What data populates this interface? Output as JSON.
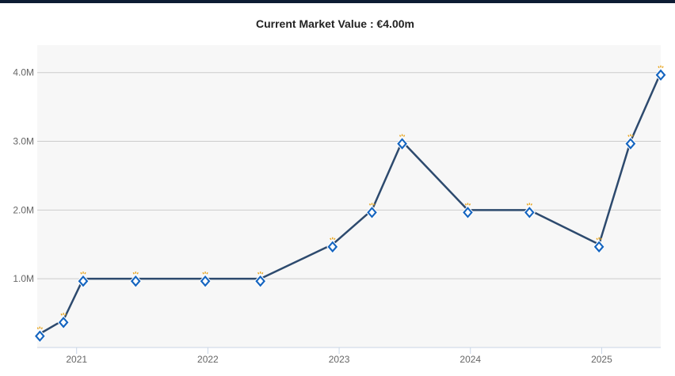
{
  "title": "Current Market Value : €4.00m",
  "colors": {
    "line": "#2d4a6e",
    "plot_bg": "#f7f7f7",
    "grid": "#cccccc",
    "marker": "#1565c0",
    "star": "#e8a317"
  },
  "marker_icon": "club-crest-icon",
  "chart_data": {
    "type": "line",
    "title": "Current Market Value : €4.00m",
    "xlabel": "",
    "ylabel": "",
    "xlim": [
      2020.7,
      2025.45
    ],
    "ylim": [
      0,
      4.4
    ],
    "grid": true,
    "yticks": [
      {
        "value": 1,
        "label": "1.0M"
      },
      {
        "value": 2,
        "label": "2.0M"
      },
      {
        "value": 3,
        "label": "3.0M"
      },
      {
        "value": 4,
        "label": "4.0M"
      }
    ],
    "xticks": [
      {
        "value": 2021,
        "label": "2021"
      },
      {
        "value": 2022,
        "label": "2022"
      },
      {
        "value": 2023,
        "label": "2023"
      },
      {
        "value": 2024,
        "label": "2024"
      },
      {
        "value": 2025,
        "label": "2025"
      }
    ],
    "series": [
      {
        "x": [
          2020.72,
          2020.9,
          2021.05,
          2021.45,
          2021.98,
          2022.4,
          2022.95,
          2023.25,
          2023.48,
          2023.98,
          2024.45,
          2024.98,
          2025.22,
          2025.45
        ],
        "y": [
          0.2,
          0.4,
          1.0,
          1.0,
          1.0,
          1.0,
          1.5,
          2.0,
          3.0,
          2.0,
          2.0,
          1.5,
          3.0,
          4.0
        ]
      }
    ]
  }
}
